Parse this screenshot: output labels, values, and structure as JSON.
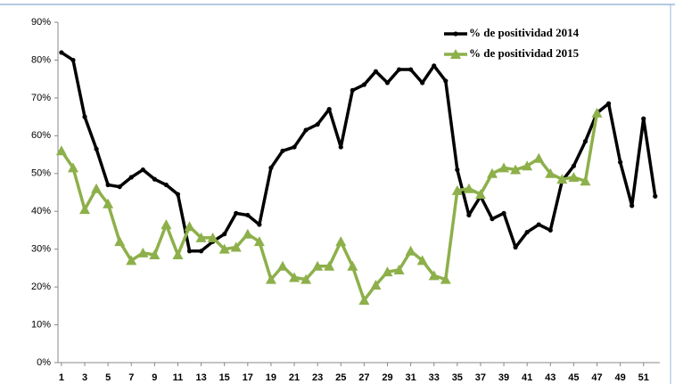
{
  "chart_data": {
    "type": "line",
    "x": [
      1,
      2,
      3,
      4,
      5,
      6,
      7,
      8,
      9,
      10,
      11,
      12,
      13,
      14,
      15,
      16,
      17,
      18,
      19,
      20,
      21,
      22,
      23,
      24,
      25,
      26,
      27,
      28,
      29,
      30,
      31,
      32,
      33,
      34,
      35,
      36,
      37,
      38,
      39,
      40,
      41,
      42,
      43,
      44,
      45,
      46,
      47,
      48,
      49,
      50,
      51,
      52
    ],
    "series": [
      {
        "name": "% de positividad 2014",
        "color": "#000000",
        "marker": "circle",
        "values": [
          82,
          80,
          65,
          56.5,
          47,
          46.5,
          49,
          51,
          48.5,
          47,
          44.5,
          29.5,
          29.5,
          32,
          34,
          39.5,
          39,
          36.5,
          51.5,
          56,
          57,
          61.5,
          63,
          67,
          57,
          72,
          73.5,
          77,
          74,
          77.5,
          77.5,
          74,
          78.5,
          74.5,
          51,
          39,
          44,
          38,
          39.5,
          30.5,
          34.5,
          36.5,
          35,
          48,
          52,
          58.5,
          66,
          68.5,
          53,
          41.5,
          64.5,
          44
        ]
      },
      {
        "name": "% de positividad 2015",
        "color": "#8db04a",
        "marker": "triangle",
        "values": [
          56,
          51.5,
          40.5,
          46,
          42,
          32,
          27,
          29,
          28.5,
          36.5,
          28.5,
          36,
          33,
          33,
          30,
          30.5,
          34,
          32,
          22,
          25.5,
          22.5,
          22,
          25.5,
          25.5,
          32,
          25.5,
          16.5,
          20.5,
          24,
          24.5,
          29.5,
          27,
          23,
          22,
          45.5,
          46,
          44.5,
          50,
          51.5,
          51,
          52,
          54,
          50,
          48.5,
          49,
          48,
          66,
          null,
          null,
          null,
          null,
          null
        ]
      }
    ],
    "xlim": [
      0.7,
      52.4
    ],
    "xticks": [
      1,
      3,
      5,
      7,
      9,
      11,
      13,
      15,
      17,
      19,
      21,
      23,
      25,
      27,
      29,
      31,
      33,
      35,
      37,
      39,
      41,
      43,
      45,
      47,
      49,
      51
    ],
    "ylim": [
      0,
      90
    ],
    "yticks": [
      {
        "value": 0,
        "label": "0%"
      },
      {
        "value": 10,
        "label": "10%"
      },
      {
        "value": 20,
        "label": "20%"
      },
      {
        "value": 30,
        "label": "30%"
      },
      {
        "value": 40,
        "label": "40%"
      },
      {
        "value": 50,
        "label": "50%"
      },
      {
        "value": 60,
        "label": "60%"
      },
      {
        "value": 70,
        "label": "70%"
      },
      {
        "value": 80,
        "label": "80%"
      },
      {
        "value": 90,
        "label": "90%"
      }
    ],
    "legend": "upper-right",
    "grid": false
  }
}
